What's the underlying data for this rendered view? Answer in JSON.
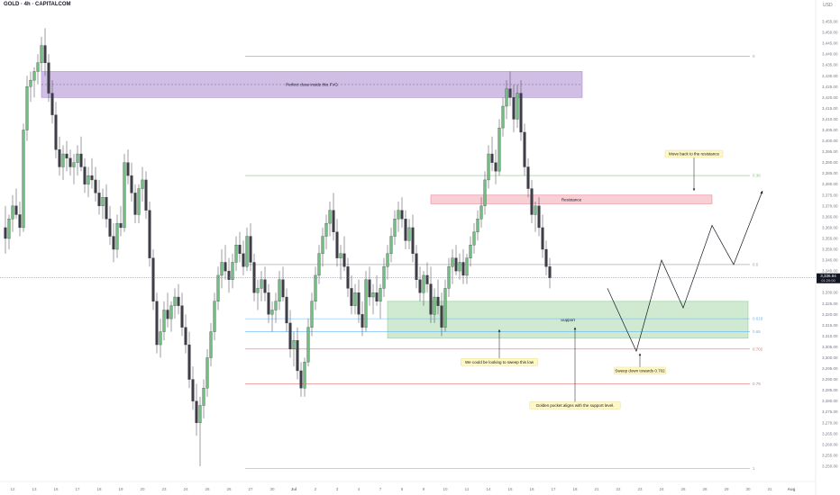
{
  "header": {
    "symbol": "GOLD · 4h · CAPITALCOM",
    "currency": "USD"
  },
  "price_label": {
    "value": "3,336.84",
    "countdown": "01:20:00"
  },
  "colors": {
    "up_candle": "#6fbf7e",
    "down_candle": "#3d3f45",
    "fvg_zone": "#c9b3e0",
    "resistance_zone": "#f8c7cf",
    "support_zone": "#c8e6c9",
    "fib_neutral": "#9e9e9e",
    "fib_green": "#81c784",
    "fib_blue": "#64b5f6",
    "fib_red": "#e57373",
    "annotation_bg": "#fff8c4",
    "projection": "#131722"
  },
  "chart_data": {
    "type": "candlestick",
    "title": "GOLD · 4h · CAPITALCOM",
    "ylim": [
      3245,
      3460
    ],
    "y_ticks": [
      3250,
      3255,
      3260,
      3265,
      3270,
      3275,
      3280,
      3285,
      3290,
      3295,
      3300,
      3305,
      3310,
      3315,
      3320,
      3325,
      3330,
      3335,
      3340,
      3345,
      3350,
      3355,
      3360,
      3365,
      3370,
      3375,
      3380,
      3385,
      3390,
      3395,
      3400,
      3405,
      3410,
      3415,
      3420,
      3425,
      3430,
      3435,
      3440,
      3445,
      3450,
      3455
    ],
    "x_ticks": [
      {
        "label": "12",
        "i": 2
      },
      {
        "label": "13",
        "i": 8
      },
      {
        "label": "16",
        "i": 14
      },
      {
        "label": "17",
        "i": 20
      },
      {
        "label": "18",
        "i": 26
      },
      {
        "label": "19",
        "i": 32
      },
      {
        "label": "20",
        "i": 38
      },
      {
        "label": "23",
        "i": 44
      },
      {
        "label": "24",
        "i": 50
      },
      {
        "label": "25",
        "i": 56
      },
      {
        "label": "26",
        "i": 62
      },
      {
        "label": "27",
        "i": 68
      },
      {
        "label": "30",
        "i": 74
      },
      {
        "label": "Jul",
        "i": 80
      },
      {
        "label": "2",
        "i": 86
      },
      {
        "label": "3",
        "i": 92
      },
      {
        "label": "4",
        "i": 98
      },
      {
        "label": "7",
        "i": 104
      },
      {
        "label": "8",
        "i": 110
      },
      {
        "label": "9",
        "i": 116
      },
      {
        "label": "10",
        "i": 122
      },
      {
        "label": "11",
        "i": 128
      },
      {
        "label": "14",
        "i": 134
      },
      {
        "label": "15",
        "i": 140
      },
      {
        "label": "16",
        "i": 146
      },
      {
        "label": "17",
        "i": 152
      },
      {
        "label": "18",
        "i": 158
      },
      {
        "label": "21",
        "i": 164
      },
      {
        "label": "22",
        "i": 170
      },
      {
        "label": "23",
        "i": 176
      },
      {
        "label": "24",
        "i": 182
      },
      {
        "label": "25",
        "i": 188
      },
      {
        "label": "28",
        "i": 194
      },
      {
        "label": "29",
        "i": 200
      },
      {
        "label": "30",
        "i": 206
      },
      {
        "label": "31",
        "i": 212
      },
      {
        "label": "Aug",
        "i": 218
      },
      {
        "label": "5",
        "i": 224
      },
      {
        "label": "6",
        "i": 230
      },
      {
        "label": "7",
        "i": 236
      },
      {
        "label": "8",
        "i": 242
      }
    ],
    "candles": [
      [
        3360,
        3370,
        3348,
        3355
      ],
      [
        3355,
        3366,
        3350,
        3364
      ],
      [
        3364,
        3375,
        3358,
        3370
      ],
      [
        3370,
        3378,
        3364,
        3366
      ],
      [
        3366,
        3372,
        3356,
        3360
      ],
      [
        3360,
        3408,
        3358,
        3405
      ],
      [
        3405,
        3430,
        3400,
        3425
      ],
      [
        3425,
        3432,
        3418,
        3428
      ],
      [
        3428,
        3434,
        3420,
        3432
      ],
      [
        3432,
        3440,
        3426,
        3436
      ],
      [
        3436,
        3448,
        3432,
        3444
      ],
      [
        3444,
        3452,
        3430,
        3436
      ],
      [
        3436,
        3440,
        3418,
        3422
      ],
      [
        3422,
        3428,
        3408,
        3412
      ],
      [
        3412,
        3418,
        3392,
        3396
      ],
      [
        3396,
        3402,
        3384,
        3388
      ],
      [
        3388,
        3398,
        3382,
        3394
      ],
      [
        3394,
        3400,
        3386,
        3392
      ],
      [
        3392,
        3396,
        3384,
        3388
      ],
      [
        3388,
        3394,
        3380,
        3390
      ],
      [
        3390,
        3398,
        3384,
        3394
      ],
      [
        3394,
        3402,
        3386,
        3388
      ],
      [
        3388,
        3392,
        3376,
        3380
      ],
      [
        3380,
        3388,
        3374,
        3384
      ],
      [
        3384,
        3392,
        3378,
        3382
      ],
      [
        3382,
        3388,
        3372,
        3376
      ],
      [
        3376,
        3382,
        3366,
        3370
      ],
      [
        3370,
        3378,
        3364,
        3374
      ],
      [
        3374,
        3380,
        3360,
        3364
      ],
      [
        3364,
        3370,
        3352,
        3356
      ],
      [
        3356,
        3362,
        3344,
        3350
      ],
      [
        3350,
        3366,
        3346,
        3362
      ],
      [
        3362,
        3370,
        3356,
        3360
      ],
      [
        3360,
        3394,
        3358,
        3390
      ],
      [
        3390,
        3396,
        3380,
        3384
      ],
      [
        3384,
        3390,
        3372,
        3376
      ],
      [
        3376,
        3380,
        3362,
        3366
      ],
      [
        3366,
        3380,
        3362,
        3378
      ],
      [
        3378,
        3388,
        3372,
        3382
      ],
      [
        3382,
        3386,
        3364,
        3368
      ],
      [
        3368,
        3372,
        3342,
        3346
      ],
      [
        3346,
        3350,
        3322,
        3326
      ],
      [
        3326,
        3330,
        3302,
        3306
      ],
      [
        3306,
        3318,
        3300,
        3312
      ],
      [
        3312,
        3326,
        3308,
        3322
      ],
      [
        3322,
        3330,
        3314,
        3318
      ],
      [
        3318,
        3326,
        3312,
        3324
      ],
      [
        3324,
        3332,
        3318,
        3328
      ],
      [
        3328,
        3334,
        3320,
        3324
      ],
      [
        3324,
        3330,
        3310,
        3314
      ],
      [
        3314,
        3320,
        3302,
        3306
      ],
      [
        3306,
        3312,
        3286,
        3290
      ],
      [
        3290,
        3296,
        3276,
        3280
      ],
      [
        3280,
        3288,
        3264,
        3270
      ],
      [
        3270,
        3282,
        3250,
        3278
      ],
      [
        3278,
        3290,
        3272,
        3286
      ],
      [
        3286,
        3304,
        3282,
        3300
      ],
      [
        3300,
        3316,
        3296,
        3312
      ],
      [
        3312,
        3330,
        3308,
        3326
      ],
      [
        3326,
        3342,
        3322,
        3338
      ],
      [
        3338,
        3350,
        3332,
        3344
      ],
      [
        3344,
        3352,
        3336,
        3340
      ],
      [
        3340,
        3346,
        3330,
        3336
      ],
      [
        3336,
        3348,
        3332,
        3344
      ],
      [
        3344,
        3356,
        3340,
        3352
      ],
      [
        3352,
        3358,
        3344,
        3348
      ],
      [
        3348,
        3354,
        3338,
        3342
      ],
      [
        3342,
        3360,
        3340,
        3356
      ],
      [
        3356,
        3362,
        3340,
        3344
      ],
      [
        3344,
        3348,
        3326,
        3330
      ],
      [
        3330,
        3336,
        3322,
        3332
      ],
      [
        3332,
        3340,
        3326,
        3336
      ],
      [
        3336,
        3342,
        3326,
        3330
      ],
      [
        3330,
        3334,
        3316,
        3320
      ],
      [
        3320,
        3326,
        3312,
        3322
      ],
      [
        3322,
        3330,
        3316,
        3326
      ],
      [
        3326,
        3340,
        3322,
        3336
      ],
      [
        3336,
        3342,
        3326,
        3328
      ],
      [
        3328,
        3332,
        3312,
        3316
      ],
      [
        3316,
        3322,
        3300,
        3304
      ],
      [
        3304,
        3312,
        3296,
        3308
      ],
      [
        3308,
        3314,
        3290,
        3294
      ],
      [
        3294,
        3298,
        3282,
        3286
      ],
      [
        3286,
        3300,
        3282,
        3298
      ],
      [
        3298,
        3318,
        3296,
        3314
      ],
      [
        3314,
        3330,
        3310,
        3326
      ],
      [
        3326,
        3342,
        3322,
        3338
      ],
      [
        3338,
        3352,
        3334,
        3348
      ],
      [
        3348,
        3360,
        3342,
        3356
      ],
      [
        3356,
        3366,
        3350,
        3362
      ],
      [
        3362,
        3372,
        3356,
        3368
      ],
      [
        3368,
        3376,
        3354,
        3358
      ],
      [
        3358,
        3364,
        3342,
        3346
      ],
      [
        3346,
        3352,
        3336,
        3348
      ],
      [
        3348,
        3356,
        3340,
        3342
      ],
      [
        3342,
        3346,
        3328,
        3332
      ],
      [
        3332,
        3338,
        3320,
        3324
      ],
      [
        3324,
        3334,
        3320,
        3330
      ],
      [
        3330,
        3336,
        3316,
        3320
      ],
      [
        3320,
        3326,
        3310,
        3314
      ],
      [
        3314,
        3340,
        3312,
        3336
      ],
      [
        3336,
        3342,
        3324,
        3328
      ],
      [
        3328,
        3334,
        3320,
        3330
      ],
      [
        3330,
        3338,
        3324,
        3326
      ],
      [
        3326,
        3334,
        3318,
        3332
      ],
      [
        3332,
        3346,
        3328,
        3342
      ],
      [
        3342,
        3352,
        3336,
        3348
      ],
      [
        3348,
        3360,
        3344,
        3356
      ],
      [
        3356,
        3368,
        3352,
        3364
      ],
      [
        3364,
        3372,
        3358,
        3368
      ],
      [
        3368,
        3374,
        3360,
        3364
      ],
      [
        3364,
        3368,
        3350,
        3354
      ],
      [
        3354,
        3364,
        3350,
        3360
      ],
      [
        3360,
        3366,
        3344,
        3348
      ],
      [
        3348,
        3352,
        3332,
        3336
      ],
      [
        3336,
        3342,
        3326,
        3330
      ],
      [
        3330,
        3340,
        3324,
        3338
      ],
      [
        3338,
        3344,
        3330,
        3334
      ],
      [
        3334,
        3342,
        3316,
        3320
      ],
      [
        3320,
        3332,
        3316,
        3328
      ],
      [
        3328,
        3336,
        3320,
        3324
      ],
      [
        3324,
        3330,
        3310,
        3314
      ],
      [
        3314,
        3336,
        3312,
        3332
      ],
      [
        3332,
        3346,
        3328,
        3342
      ],
      [
        3342,
        3350,
        3334,
        3346
      ],
      [
        3346,
        3352,
        3338,
        3340
      ],
      [
        3340,
        3348,
        3336,
        3344
      ],
      [
        3344,
        3350,
        3334,
        3338
      ],
      [
        3338,
        3348,
        3334,
        3346
      ],
      [
        3346,
        3356,
        3342,
        3352
      ],
      [
        3352,
        3362,
        3348,
        3358
      ],
      [
        3358,
        3368,
        3354,
        3364
      ],
      [
        3364,
        3374,
        3360,
        3370
      ],
      [
        3370,
        3386,
        3366,
        3382
      ],
      [
        3382,
        3398,
        3378,
        3394
      ],
      [
        3394,
        3402,
        3386,
        3390
      ],
      [
        3390,
        3396,
        3380,
        3386
      ],
      [
        3386,
        3410,
        3384,
        3406
      ],
      [
        3406,
        3420,
        3402,
        3416
      ],
      [
        3416,
        3428,
        3410,
        3424
      ],
      [
        3424,
        3432,
        3416,
        3420
      ],
      [
        3420,
        3426,
        3404,
        3410
      ],
      [
        3410,
        3426,
        3406,
        3422
      ],
      [
        3422,
        3428,
        3400,
        3404
      ],
      [
        3404,
        3408,
        3384,
        3388
      ],
      [
        3388,
        3392,
        3374,
        3378
      ],
      [
        3378,
        3382,
        3362,
        3366
      ],
      [
        3366,
        3372,
        3358,
        3370
      ],
      [
        3370,
        3374,
        3356,
        3360
      ],
      [
        3360,
        3366,
        3346,
        3350
      ],
      [
        3350,
        3354,
        3338,
        3342
      ],
      [
        3342,
        3346,
        3332,
        3336.84
      ]
    ],
    "fib_levels": [
      {
        "label": "0",
        "price": 3439,
        "color": "neutral"
      },
      {
        "label": "0.38",
        "price": 3384,
        "color": "green"
      },
      {
        "label": "0.5",
        "price": 3343,
        "color": "neutral"
      },
      {
        "label": "0.618",
        "price": 3318,
        "color": "blue"
      },
      {
        "label": "0.65",
        "price": 3312,
        "color": "blue"
      },
      {
        "label": "0.702",
        "price": 3304,
        "color": "red"
      },
      {
        "label": "0.79",
        "price": 3288,
        "color": "red"
      },
      {
        "label": "1",
        "price": 3249,
        "color": "neutral"
      }
    ],
    "zones": [
      {
        "label": "Perfect close inside this FVG",
        "kind": "fvg",
        "top": 3432,
        "bottom": 3420,
        "i0": 10,
        "i1": 160
      },
      {
        "label": "Resistance",
        "kind": "resistance",
        "top": 3375,
        "bottom": 3371,
        "i0": 118,
        "i1": 196
      },
      {
        "label": "Support",
        "kind": "support",
        "top": 3326,
        "bottom": 3309,
        "i0": 106,
        "i1": 206
      }
    ],
    "annotations": [
      {
        "text": "Move back to the resistance",
        "i": 191,
        "price": 3394,
        "arrow_to_price": 3377
      },
      {
        "text": "We could be looking to sweep this low",
        "i": 137,
        "price": 3298,
        "arrow_to_price": 3313
      },
      {
        "text": "Sweep down towards 0.702",
        "i": 176,
        "price": 3294,
        "arrow_to_price": 3302
      },
      {
        "text": "Golden pocket aligns with the support level.",
        "i": 158,
        "price": 3278,
        "arrow_to_price": 3314
      }
    ],
    "projection_path": [
      [
        167,
        3332
      ],
      [
        175,
        3303
      ],
      [
        182,
        3345
      ],
      [
        188,
        3323
      ],
      [
        196,
        3361
      ],
      [
        202,
        3343
      ],
      [
        210,
        3377
      ]
    ],
    "current_price": 3336.84
  }
}
